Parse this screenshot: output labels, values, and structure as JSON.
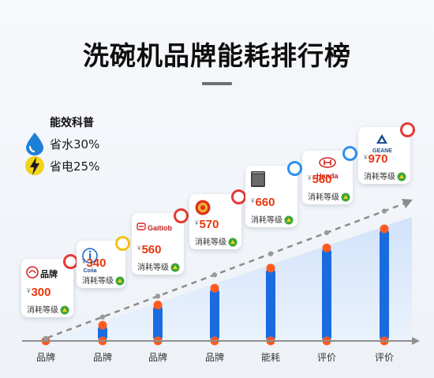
{
  "title": "洗碗机品牌能耗排行榜",
  "legend": {
    "title": "能效科普",
    "items": [
      {
        "label": "省水30%",
        "icon": "water-drop-icon",
        "color": "#1e7fd8"
      },
      {
        "label": "省电25%",
        "icon": "lightning-icon",
        "color": "#f2d21a"
      }
    ]
  },
  "colors": {
    "bar": "#1a6be0",
    "bar_cap": "#ff5a1f",
    "trend": "#8c8c8c",
    "area": "#dbe9fb",
    "axis": "#8e8e8e",
    "price": "#e8360e"
  },
  "chart_data": {
    "type": "bar",
    "title": "洗碗机品牌能耗排行榜",
    "categories": [
      "品牌",
      "品牌",
      "品牌",
      "品牌",
      "能耗",
      "评价",
      "评价"
    ],
    "series": [
      {
        "values": [
          300,
          340,
          560,
          570,
          660,
          560,
          970
        ]
      }
    ],
    "bar_heights_relative": [
      0.0,
      0.14,
      0.32,
      0.47,
      0.65,
      0.83,
      1.0
    ],
    "trend": "dashed-line-increasing",
    "ylim": [
      0,
      1
    ],
    "grid": false,
    "legend": "top-left"
  },
  "cards": [
    {
      "brand": "品牌",
      "logo": "brand-logo-icon",
      "currency": "¥",
      "price": "300",
      "rating_label": "消耗等级",
      "badge": "#e53935"
    },
    {
      "brand": "Coiia",
      "logo": "circle-i-logo-icon",
      "currency": "¥",
      "price": "340",
      "rating_label": "消耗等级",
      "badge": "#f2c318"
    },
    {
      "brand": "Gaitiob",
      "logo": "car-logo-icon",
      "currency": "¥",
      "price": "560",
      "rating_label": "消耗等级",
      "badge": "#e53935"
    },
    {
      "brand": "",
      "logo": "seal-logo-icon",
      "currency": "¥",
      "price": "570",
      "rating_label": "消耗等级",
      "badge": "#e53935"
    },
    {
      "brand": "",
      "logo": "dishwasher-icon",
      "currency": "¥",
      "price": "660",
      "rating_label": "消耗等级",
      "badge": "#2f8ff0"
    },
    {
      "brand": "Handa",
      "logo": "h-logo-icon",
      "currency": "¥",
      "price": "560",
      "rating_label": "消耗等级",
      "badge": "#2f8ff0"
    },
    {
      "brand": "GEANE",
      "logo": "triangle-logo-icon",
      "currency": "¥",
      "price": "970",
      "rating_label": "消耗等级",
      "badge": "#e53935"
    }
  ]
}
